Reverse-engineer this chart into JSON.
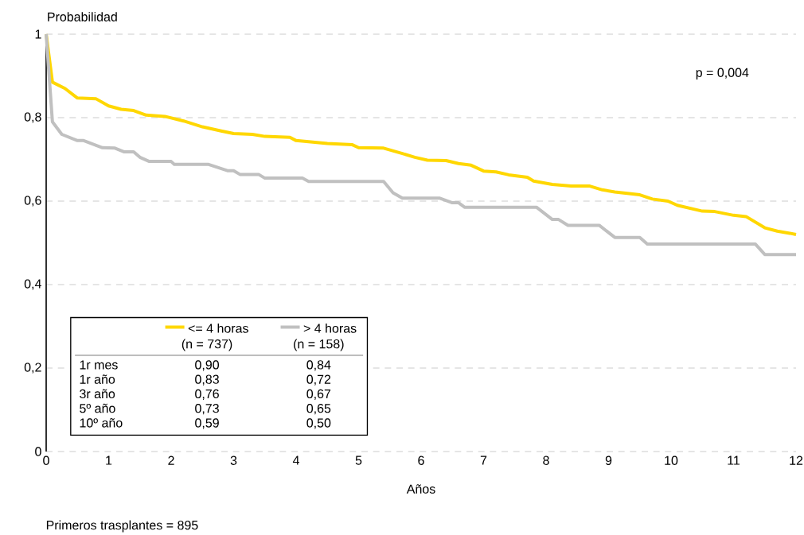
{
  "chart_data": {
    "type": "line",
    "xlabel": "Años",
    "ylabel": "Probabilidad",
    "xlim": [
      0,
      12
    ],
    "ylim": [
      0,
      1
    ],
    "xticks": [
      0,
      1,
      2,
      3,
      4,
      5,
      6,
      7,
      8,
      9,
      10,
      11,
      12
    ],
    "yticks": [
      0,
      {
        "value": 0.2,
        "label": "0,2"
      },
      {
        "value": 0.4,
        "label": "0,4"
      },
      {
        "value": 0.6,
        "label": "0,6"
      },
      {
        "value": 0.8,
        "label": "0,8"
      },
      1
    ],
    "grid": "y",
    "legend": "bottom left",
    "line_style": "solid",
    "marker": "none",
    "annotations": [
      "p = 0,004",
      "Primeros trasplantes = 895",
      "(n = 737)",
      "(n = 158)",
      "1r mes",
      "0,90",
      "0,84",
      "1r año",
      "0,83",
      "0,72",
      "3r año",
      "0,76",
      "0,67",
      "5º año",
      "0,73",
      "0,65",
      "10º año",
      "0,59",
      "0,50"
    ],
    "series": [
      {
        "name": "<= 4 horas",
        "color": "#ffd700",
        "x": [
          0,
          0.1,
          0.3,
          0.5,
          0.8,
          1.0,
          1.2,
          1.4,
          1.6,
          1.9,
          2.2,
          2.5,
          2.8,
          3.0,
          3.3,
          3.5,
          3.9,
          4.0,
          4.5,
          4.9,
          5.0,
          5.4,
          5.7,
          5.9,
          6.1,
          6.4,
          6.6,
          6.8,
          7.0,
          7.2,
          7.4,
          7.7,
          7.8,
          8.1,
          8.4,
          8.7,
          8.9,
          9.1,
          9.5,
          9.7,
          9.95,
          10.1,
          10.3,
          10.5,
          10.7,
          11.0,
          11.2,
          11.5,
          11.7,
          11.9,
          12
        ],
        "values": [
          1,
          0.885,
          0.87,
          0.847,
          0.845,
          0.828,
          0.82,
          0.817,
          0.806,
          0.803,
          0.792,
          0.778,
          0.768,
          0.762,
          0.76,
          0.755,
          0.753,
          0.745,
          0.738,
          0.735,
          0.728,
          0.727,
          0.714,
          0.705,
          0.698,
          0.697,
          0.69,
          0.686,
          0.672,
          0.67,
          0.663,
          0.657,
          0.648,
          0.64,
          0.636,
          0.636,
          0.627,
          0.622,
          0.615,
          0.605,
          0.6,
          0.59,
          0.583,
          0.576,
          0.575,
          0.566,
          0.563,
          0.536,
          0.528,
          0.523,
          0.52
        ]
      },
      {
        "name": "> 4 horas",
        "color": "#c0c0c0",
        "x": [
          0,
          0.1,
          0.25,
          0.5,
          0.6,
          0.9,
          1.1,
          1.25,
          1.4,
          1.5,
          1.65,
          2.0,
          2.05,
          2.6,
          2.9,
          3.0,
          3.1,
          3.4,
          3.5,
          4.1,
          4.2,
          5.4,
          5.55,
          5.7,
          6.3,
          6.5,
          6.6,
          6.7,
          7.85,
          8.1,
          8.2,
          8.35,
          8.85,
          9.1,
          9.5,
          9.62,
          11.35,
          11.5,
          12
        ],
        "values": [
          1,
          0.79,
          0.76,
          0.745,
          0.745,
          0.728,
          0.727,
          0.718,
          0.718,
          0.705,
          0.695,
          0.695,
          0.688,
          0.688,
          0.673,
          0.673,
          0.664,
          0.664,
          0.655,
          0.655,
          0.647,
          0.647,
          0.62,
          0.607,
          0.607,
          0.596,
          0.596,
          0.585,
          0.585,
          0.556,
          0.556,
          0.542,
          0.542,
          0.513,
          0.513,
          0.497,
          0.497,
          0.472,
          0.472
        ]
      }
    ]
  }
}
